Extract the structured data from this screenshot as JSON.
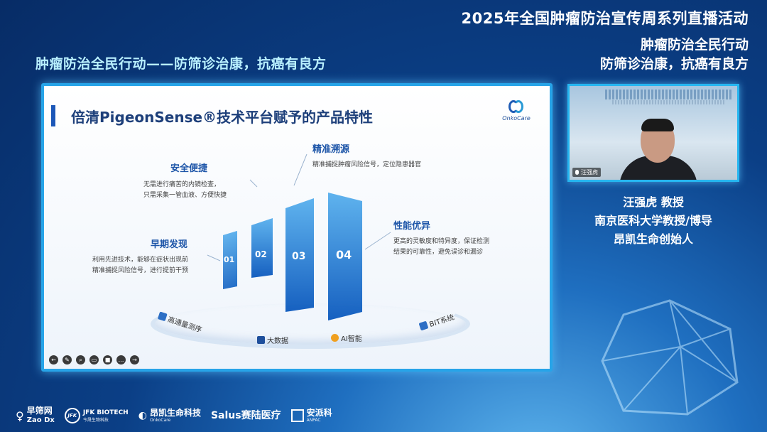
{
  "header": {
    "broadcast_title": "2025年全国肿瘤防治宣传周系列直播活动",
    "slogan_right_line1": "肿瘤防治全民行动",
    "slogan_right_line2": "防筛诊治康，抗癌有良方",
    "slogan_left": "肿瘤防治全民行动——防筛诊治康，抗癌有良方"
  },
  "slide": {
    "title": "倍清PigeonSense®技术平台赋予的产品特性",
    "brand": "OnkoCare",
    "features": [
      {
        "num": "01",
        "title": "早期发现",
        "desc_line1": "利用先进技术，能够在症状出现前",
        "desc_line2": "精准捕捉风险信号，进行提前干预"
      },
      {
        "num": "02",
        "title": "安全便捷",
        "desc_line1": "无需进行痛苦的内镜检查，",
        "desc_line2": "只需采集一管血液、方便快捷"
      },
      {
        "num": "03",
        "title": "精准溯源",
        "desc_line1": "精准捕捉肿瘤风险信号，定位隐患器官",
        "desc_line2": ""
      },
      {
        "num": "04",
        "title": "性能优异",
        "desc_line1": "更高的灵敏度和特异度，保证检测",
        "desc_line2": "结果的可靠性，避免误诊和漏诊"
      }
    ],
    "technologies": [
      "高通量测序",
      "大数据",
      "AI智能",
      "BIT系统"
    ]
  },
  "webcam": {
    "name_chip": "汪强虎"
  },
  "speaker": {
    "line1": "汪强虎 教授",
    "line2": "南京医科大学教授/博导",
    "line3": "昂凯生命创始人"
  },
  "sponsors": [
    {
      "name": "早筛网",
      "sub": "Zao Dx"
    },
    {
      "name": "JFK BIOTECH",
      "sub": "今晟生物科技"
    },
    {
      "name": "昂凯生命科技",
      "sub": "OnkoCare"
    },
    {
      "name": "Salus赛陆医疗",
      "sub": ""
    },
    {
      "name": "安派科",
      "sub": "ANPAC"
    }
  ],
  "colors": {
    "accent_cyan": "#27a4e8",
    "bar_blue": "#1f6fc8",
    "title_blue": "#1d3f7a"
  }
}
